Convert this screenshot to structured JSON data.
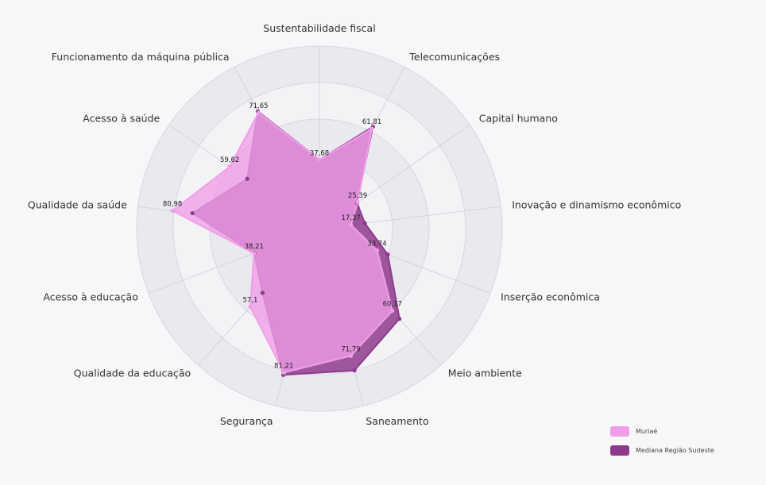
{
  "chart_data": {
    "type": "radar",
    "range": [
      0,
      100
    ],
    "grid": true,
    "legend_position": "bottom-right",
    "categories": [
      "Sustentabilidade fiscal",
      "Telecomunicações",
      "Capital humano",
      "Inovação e dinamismo econômico",
      "Inserção econômica",
      "Meio ambiente",
      "Saneamento",
      "Segurança",
      "Qualidade da educação",
      "Acesso à educação",
      "Qualidade da saúde",
      "Acesso à saúde",
      "Funcionamento da máquina pública"
    ],
    "series": [
      {
        "name": "Muriaé",
        "color": "#f09ee8",
        "values": [
          37.68,
          61.81,
          25.39,
          17.37,
          33.74,
          60.17,
          71.79,
          81.21,
          57.1,
          38.21,
          80.98,
          59.62,
          71.65
        ],
        "labels": [
          "37,68",
          "61,81",
          "25,39",
          "17,37",
          "33,74",
          "60,17",
          "71,79",
          "81,21",
          "57,1",
          "38,21",
          "80,98",
          "59,62",
          "71,65"
        ]
      },
      {
        "name": "Mediana Região Sudeste",
        "color": "#8e3a8c",
        "values": [
          37.7,
          63.0,
          25.0,
          25.0,
          40.0,
          66.0,
          80.0,
          82.5,
          47.0,
          38.0,
          70.0,
          48.0,
          72.5
        ]
      }
    ]
  }
}
